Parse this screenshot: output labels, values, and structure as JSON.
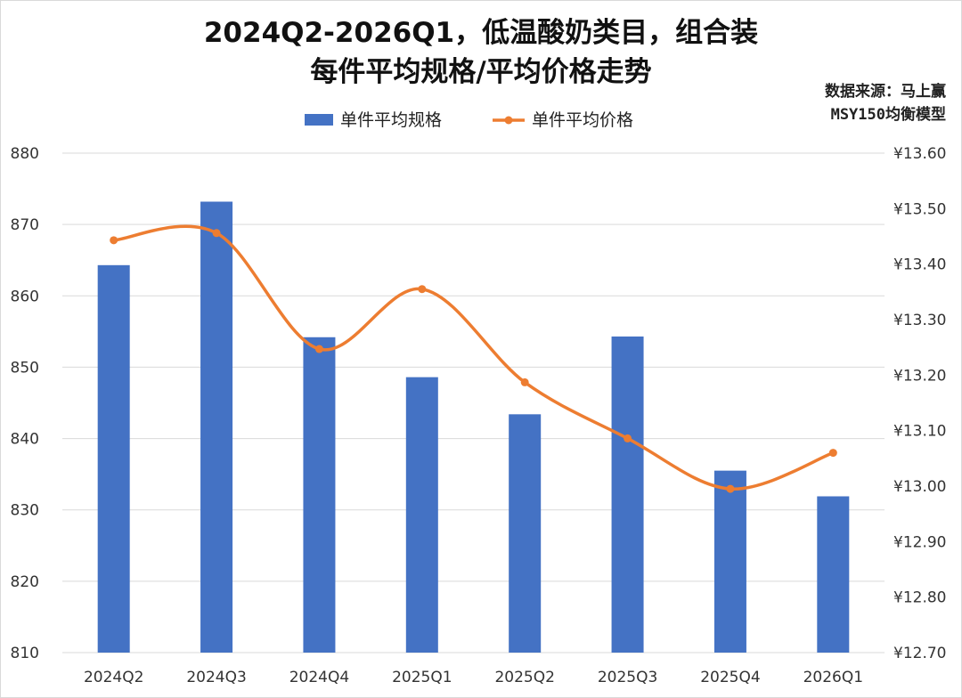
{
  "title_line1": "2024Q2-2026Q1，低温酸奶类目，组合装",
  "title_line2": "每件平均规格/平均价格走势",
  "source_line1": "数据来源：马上赢",
  "source_line2": "MSY150均衡模型",
  "colors": {
    "bar": "#4472C4",
    "line": "#ED7D31",
    "grid": "#D9D9D9"
  },
  "chart_data": {
    "type": "bar+line",
    "categories": [
      "2024Q2",
      "2024Q3",
      "2024Q4",
      "2025Q1",
      "2025Q2",
      "2025Q3",
      "2025Q4",
      "2026Q1"
    ],
    "series": [
      {
        "name": "单件平均规格",
        "type": "bar",
        "axis": "left",
        "values": [
          864.3,
          873.2,
          854.2,
          848.6,
          843.4,
          854.3,
          835.5,
          831.9
        ]
      },
      {
        "name": "单件平均价格",
        "type": "line",
        "axis": "right",
        "values": [
          13.443,
          13.456,
          13.247,
          13.355,
          13.187,
          13.086,
          12.995,
          13.06
        ]
      }
    ],
    "y_left": {
      "ylim": [
        810,
        880
      ],
      "ticks": [
        "810",
        "820",
        "830",
        "840",
        "850",
        "860",
        "870",
        "880"
      ]
    },
    "y_right": {
      "ylim": [
        12.7,
        13.6
      ],
      "ticks": [
        "¥12.70",
        "¥12.80",
        "¥12.90",
        "¥13.00",
        "¥13.10",
        "¥13.20",
        "¥13.30",
        "¥13.40",
        "¥13.50",
        "¥13.60"
      ]
    },
    "grid": true,
    "legend_position": "top-center"
  }
}
